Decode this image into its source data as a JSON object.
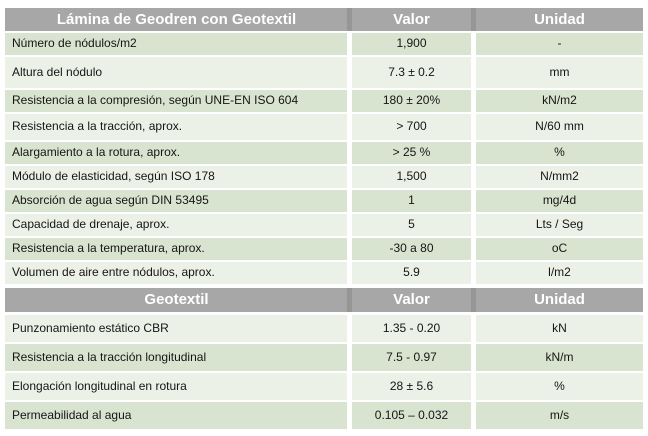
{
  "colors": {
    "header_bg": "#a7a7a7",
    "header_divider": "#969696",
    "header_text": "#ffffff",
    "row_green": "#d8e4cf",
    "row_pale": "#ebf1e7",
    "body_text": "#151515",
    "page_bg": "#ffffff"
  },
  "tables": [
    {
      "title": "Lámina de Geodren con Geotextil",
      "col_valor": "Valor",
      "col_unidad": "Unidad",
      "rows": [
        {
          "label": "Número de nódulos/m2",
          "valor": "1,900",
          "unidad": "-"
        },
        {
          "label": "Altura del nódulo",
          "valor": "7.3 ± 0.2",
          "unidad": "mm"
        },
        {
          "label": "Resistencia a la compresión, según UNE-EN ISO 604",
          "valor": "180 ± 20%",
          "unidad": "kN/m2"
        },
        {
          "label": "Resistencia a la tracción, aprox.",
          "valor": "> 700",
          "unidad": "N/60 mm"
        },
        {
          "label": "Alargamiento a la rotura, aprox.",
          "valor": "> 25 %",
          "unidad": "%"
        },
        {
          "label": "Módulo de elasticidad, según ISO 178",
          "valor": "1,500",
          "unidad": "N/mm2"
        },
        {
          "label": "Absorción de agua según DIN 53495",
          "valor": "1",
          "unidad": "mg/4d"
        },
        {
          "label": "Capacidad de drenaje, aprox.",
          "valor": "5",
          "unidad": "Lts / Seg"
        },
        {
          "label": "Resistencia a la temperatura, aprox.",
          "valor": "-30 a 80",
          "unidad": "oC"
        },
        {
          "label": "Volumen de aire entre nódulos, aprox.",
          "valor": "5.9",
          "unidad": "l/m2"
        }
      ]
    },
    {
      "title": "Geotextil",
      "col_valor": "Valor",
      "col_unidad": "Unidad",
      "rows": [
        {
          "label": "Punzonamiento estático CBR",
          "valor": "1.35 - 0.20",
          "unidad": "kN"
        },
        {
          "label": "Resistencia a la tracción longitudinal",
          "valor": "7.5 - 0.97",
          "unidad": "kN/m"
        },
        {
          "label": "Elongación longitudinal en rotura",
          "valor": "28 ± 5.6",
          "unidad": "%"
        },
        {
          "label": "Permeabilidad al agua",
          "valor": "0.105 – 0.032",
          "unidad": "m/s"
        }
      ]
    }
  ]
}
